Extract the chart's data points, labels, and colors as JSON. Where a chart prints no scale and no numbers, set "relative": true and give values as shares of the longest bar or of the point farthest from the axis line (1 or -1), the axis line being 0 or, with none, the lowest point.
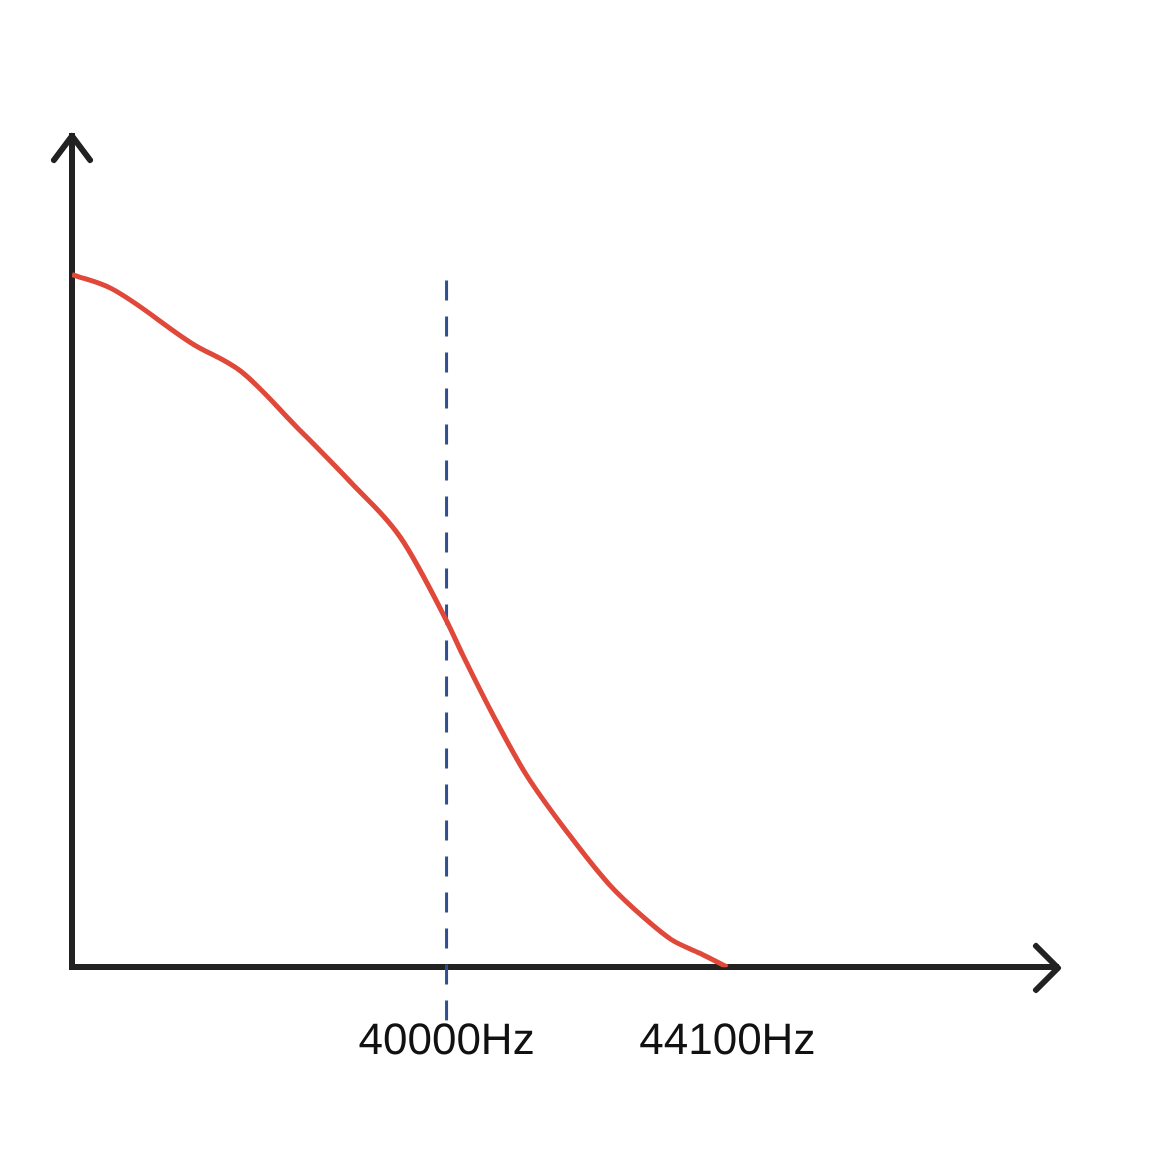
{
  "chart_data": {
    "type": "line",
    "relative": true,
    "grid": false,
    "legend": false,
    "marker": "none",
    "line_style": "solid",
    "xlim": [
      34530,
      48900
    ],
    "xticks": [
      {
        "value": 40000,
        "label": "40000Hz"
      },
      {
        "value": 44100,
        "label": "44100Hz"
      }
    ],
    "series": [
      {
        "color": "#e0483a",
        "x": [
          34530,
          35100,
          36290,
          37000,
          37810,
          38600,
          39330,
          40000,
          40240,
          40700,
          41150,
          41800,
          42370,
          42900,
          43280,
          43700,
          44100
        ],
        "values": [
          1,
          0.98,
          0.9,
          0.86,
          0.78,
          0.7,
          0.62,
          0.5,
          0.45,
          0.36,
          0.28,
          0.19,
          0.12,
          0.07,
          0.04,
          0.02,
          0
        ]
      }
    ],
    "ref_lines": [
      {
        "axis": "x",
        "value": 40000,
        "color": "#2f4f8f",
        "line_style": "dashed"
      }
    ]
  }
}
